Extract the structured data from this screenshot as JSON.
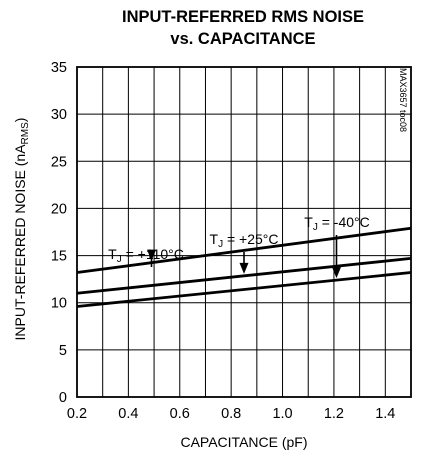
{
  "chart_data": {
    "type": "line",
    "title_line1": "INPUT-REFERRED RMS NOISE",
    "title_line2": "vs. CAPACITANCE",
    "xlabel": "CAPACITANCE (pF)",
    "ylabel": {
      "prefix": "INPUT-REFERRED NOISE (nA",
      "subscript": "RMS",
      "suffix": ")"
    },
    "figure_code": "MAX3657 toc08",
    "xlim": [
      0.2,
      1.5
    ],
    "ylim": [
      0,
      35
    ],
    "x_ticks": [
      0.2,
      0.4,
      0.6,
      0.8,
      1.0,
      1.2,
      1.4
    ],
    "x_tick_labels": [
      "0.2",
      "0.4",
      "0.6",
      "0.8",
      "1.0",
      "1.2",
      "1.4"
    ],
    "y_ticks": [
      0,
      5,
      10,
      15,
      20,
      25,
      30,
      35
    ],
    "y_tick_labels": [
      "0",
      "5",
      "10",
      "15",
      "20",
      "25",
      "30",
      "35"
    ],
    "grid": true,
    "series": [
      {
        "name": "+110°C",
        "x": [
          0.2,
          1.5
        ],
        "y": [
          13.2,
          17.9
        ]
      },
      {
        "name": "+25°C",
        "x": [
          0.2,
          1.5
        ],
        "y": [
          11.0,
          14.7
        ]
      },
      {
        "name": "-40°C",
        "x": [
          0.2,
          1.5
        ],
        "y": [
          9.6,
          13.2
        ]
      }
    ],
    "annotations": [
      {
        "prefix": "T",
        "subscript": "J",
        "suffix": " = +110°C",
        "series": 0,
        "arrow_x": 0.49
      },
      {
        "prefix": "T",
        "subscript": "J",
        "suffix": " = +25°C",
        "series": 1,
        "arrow_x": 0.85
      },
      {
        "prefix": "T",
        "subscript": "J",
        "suffix": " = -40°C",
        "series": 2,
        "arrow_x": 1.21
      }
    ]
  }
}
